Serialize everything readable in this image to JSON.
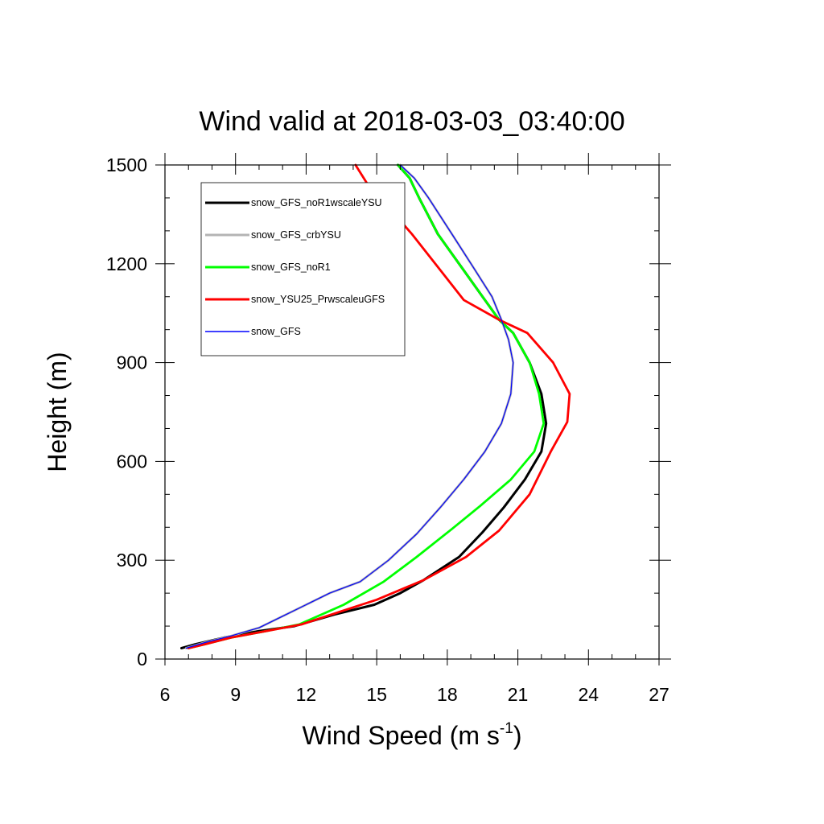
{
  "chart_data": {
    "type": "line",
    "title": "Wind valid at 2018-03-03_03:40:00",
    "xlabel": "Wind Speed (m s",
    "xlabel_sup": "-1",
    "xlabel_close": ")",
    "ylabel": "Height (m)",
    "xlim": [
      6,
      27
    ],
    "ylim": [
      0,
      1500
    ],
    "xticks": [
      6,
      9,
      12,
      15,
      18,
      21,
      24,
      27
    ],
    "yticks": [
      0,
      300,
      600,
      900,
      1200,
      1500
    ],
    "grid": false,
    "legend_position": "top-left",
    "series": [
      {
        "name": "snow_GFS_noR1wscaleYSU",
        "color": "#000000",
        "points": [
          [
            6.7,
            33
          ],
          [
            7.3,
            45
          ],
          [
            8.5,
            65
          ],
          [
            10,
            85
          ],
          [
            11.5,
            100
          ],
          [
            13.2,
            135
          ],
          [
            14.9,
            165
          ],
          [
            16,
            200
          ],
          [
            17,
            240
          ],
          [
            18.5,
            310
          ],
          [
            19.5,
            385
          ],
          [
            20.4,
            460
          ],
          [
            21.3,
            545
          ],
          [
            22,
            630
          ],
          [
            22.2,
            715
          ],
          [
            22,
            805
          ],
          [
            21.5,
            900
          ],
          [
            20.8,
            990
          ],
          [
            20.2,
            1030
          ],
          [
            19.5,
            1100
          ],
          [
            18.6,
            1190
          ],
          [
            17.6,
            1290
          ],
          [
            16.8,
            1400
          ],
          [
            16.4,
            1460
          ],
          [
            15.9,
            1500
          ]
        ]
      },
      {
        "name": "snow_GFS_crbYSU",
        "color": "#b4b4b4",
        "points": [
          [
            6.9,
            33
          ],
          [
            7.7,
            50
          ],
          [
            8.8,
            70
          ],
          [
            10,
            95
          ],
          [
            11,
            130
          ],
          [
            12,
            165
          ],
          [
            13,
            200
          ],
          [
            14.3,
            235
          ],
          [
            15.5,
            300
          ],
          [
            16.7,
            380
          ],
          [
            17.7,
            460
          ],
          [
            18.7,
            545
          ],
          [
            19.6,
            630
          ],
          [
            20.3,
            715
          ],
          [
            20.7,
            805
          ],
          [
            20.8,
            900
          ],
          [
            20.6,
            970
          ],
          [
            20.3,
            1030
          ],
          [
            19.9,
            1100
          ],
          [
            19.1,
            1190
          ],
          [
            18.2,
            1290
          ],
          [
            17.2,
            1400
          ],
          [
            16.6,
            1460
          ],
          [
            16,
            1500
          ]
        ]
      },
      {
        "name": "snow_GFS_noR1",
        "color": "#00ff00",
        "points": [
          [
            7,
            33
          ],
          [
            7.7,
            45
          ],
          [
            8.8,
            65
          ],
          [
            10.3,
            85
          ],
          [
            11.7,
            105
          ],
          [
            13.6,
            165
          ],
          [
            15.3,
            235
          ],
          [
            16.7,
            310
          ],
          [
            18.2,
            395
          ],
          [
            19.4,
            465
          ],
          [
            20.7,
            545
          ],
          [
            21.7,
            630
          ],
          [
            22.1,
            715
          ],
          [
            21.9,
            805
          ],
          [
            21.5,
            900
          ],
          [
            20.8,
            990
          ],
          [
            20.2,
            1030
          ],
          [
            19.5,
            1100
          ],
          [
            18.6,
            1190
          ],
          [
            17.6,
            1290
          ],
          [
            16.8,
            1400
          ],
          [
            16.4,
            1460
          ],
          [
            15.9,
            1500
          ]
        ]
      },
      {
        "name": "snow_YSU25_PrwscaleuGFS",
        "color": "#ff0000",
        "points": [
          [
            7,
            33
          ],
          [
            7.7,
            45
          ],
          [
            8.8,
            65
          ],
          [
            10.3,
            85
          ],
          [
            11.8,
            105
          ],
          [
            13.5,
            145
          ],
          [
            15,
            180
          ],
          [
            17,
            240
          ],
          [
            18.8,
            310
          ],
          [
            20.2,
            390
          ],
          [
            21.5,
            500
          ],
          [
            22.4,
            630
          ],
          [
            23.1,
            720
          ],
          [
            23.2,
            805
          ],
          [
            22.5,
            900
          ],
          [
            21.4,
            990
          ],
          [
            20.2,
            1030
          ],
          [
            18.7,
            1090
          ],
          [
            17.6,
            1190
          ],
          [
            16.5,
            1290
          ],
          [
            15.4,
            1380
          ],
          [
            14.8,
            1420
          ],
          [
            14.1,
            1500
          ]
        ]
      },
      {
        "name": "snow_GFS",
        "color": "#0000ff",
        "points": [
          [
            6.9,
            33
          ],
          [
            7.7,
            50
          ],
          [
            8.8,
            70
          ],
          [
            10,
            95
          ],
          [
            11,
            130
          ],
          [
            12,
            165
          ],
          [
            13,
            200
          ],
          [
            14.3,
            235
          ],
          [
            15.5,
            300
          ],
          [
            16.7,
            380
          ],
          [
            17.7,
            460
          ],
          [
            18.7,
            545
          ],
          [
            19.6,
            630
          ],
          [
            20.3,
            715
          ],
          [
            20.7,
            805
          ],
          [
            20.8,
            900
          ],
          [
            20.6,
            970
          ],
          [
            20.3,
            1030
          ],
          [
            19.9,
            1100
          ],
          [
            19.1,
            1190
          ],
          [
            18.2,
            1290
          ],
          [
            17.2,
            1400
          ],
          [
            16.6,
            1460
          ],
          [
            16,
            1500
          ]
        ]
      }
    ]
  }
}
